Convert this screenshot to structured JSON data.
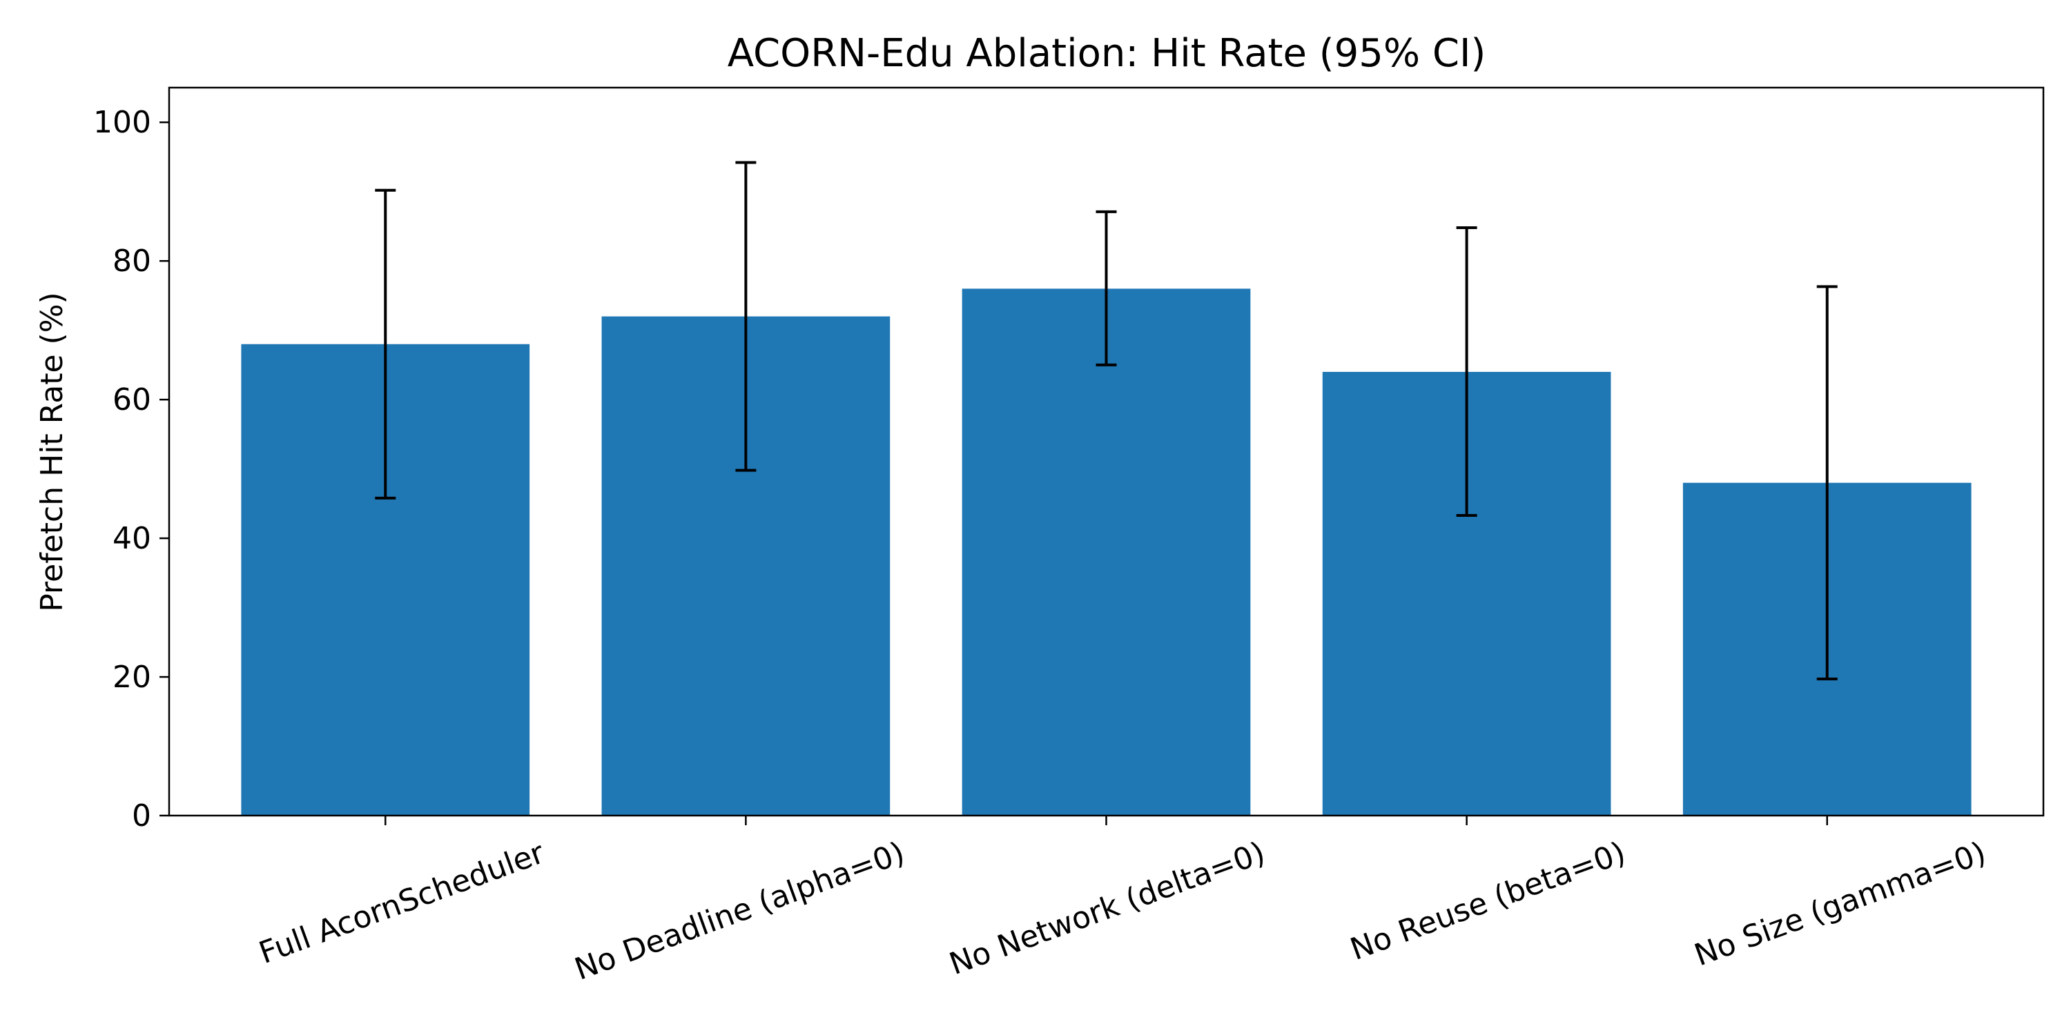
{
  "chart_data": {
    "type": "bar",
    "title": "ACORN-Edu Ablation: Hit Rate (95% CI)",
    "xlabel": "",
    "ylabel": "Prefetch Hit Rate (%)",
    "categories": [
      "Full AcornScheduler",
      "No Deadline (alpha=0)",
      "No Network (delta=0)",
      "No Reuse (beta=0)",
      "No Size (gamma=0)"
    ],
    "values": [
      68,
      72,
      76,
      64,
      48
    ],
    "ci_lower": [
      45.8,
      49.8,
      65.0,
      43.3,
      19.7
    ],
    "ci_upper": [
      90.2,
      94.2,
      87.1,
      84.8,
      76.3
    ],
    "ylim": [
      0,
      105
    ],
    "yticks": [
      0,
      20,
      40,
      60,
      80,
      100
    ],
    "bar_color": "#1f77b4",
    "errorbar_color": "#000000",
    "grid": false,
    "legend": "none"
  }
}
